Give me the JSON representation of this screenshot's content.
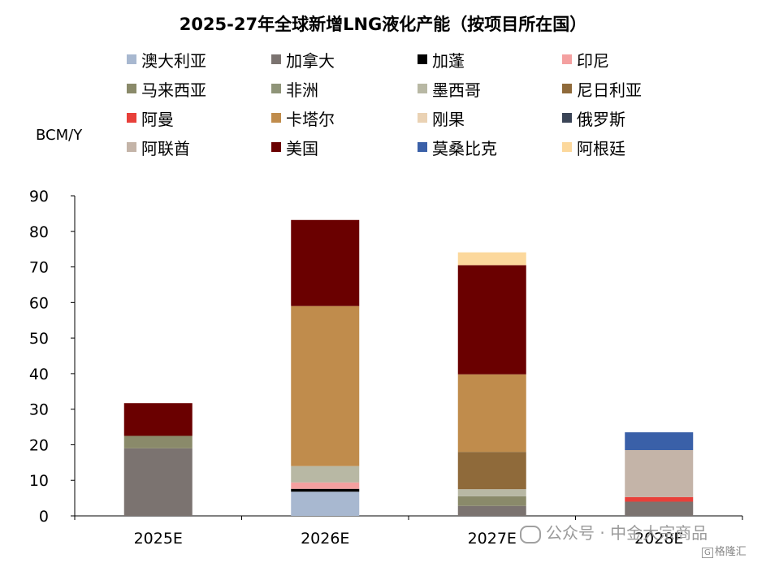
{
  "chart_data": {
    "type": "bar",
    "stacked": true,
    "title": "2025-27年全球新增LNG液化产能（按项目所在国）",
    "ylabel": "BCM/Y",
    "ylim": [
      0,
      90
    ],
    "yticks": [
      0,
      10,
      20,
      30,
      40,
      50,
      60,
      70,
      80,
      90
    ],
    "categories": [
      "2025E",
      "2026E",
      "2027E",
      "2028E"
    ],
    "legend_position": "top",
    "series": [
      {
        "name": "澳大利亚",
        "color": "#a8b8d0",
        "values": [
          0,
          6.8,
          0,
          0
        ]
      },
      {
        "name": "加拿大",
        "color": "#7b7370",
        "values": [
          19.0,
          0,
          2.8,
          4.0
        ]
      },
      {
        "name": "加蓬",
        "color": "#000000",
        "values": [
          0,
          0.8,
          0,
          0
        ]
      },
      {
        "name": "印尼",
        "color": "#f4a0a0",
        "values": [
          0,
          1.8,
          0,
          0
        ]
      },
      {
        "name": "马来西亚",
        "color": "#8a8a6a",
        "values": [
          3.5,
          0,
          2.7,
          0
        ]
      },
      {
        "name": "非洲",
        "color": "#8f9478",
        "values": [
          0,
          0,
          0,
          0
        ]
      },
      {
        "name": "墨西哥",
        "color": "#b8b8a4",
        "values": [
          0,
          4.6,
          2.0,
          0
        ]
      },
      {
        "name": "尼日利亚",
        "color": "#8f6a3a",
        "values": [
          0,
          0,
          10.5,
          0
        ]
      },
      {
        "name": "阿曼",
        "color": "#e8403a",
        "values": [
          0,
          0,
          0,
          1.3
        ]
      },
      {
        "name": "卡塔尔",
        "color": "#c08c4c",
        "values": [
          0,
          45.0,
          21.8,
          0
        ]
      },
      {
        "name": "刚果",
        "color": "#ead2b4",
        "values": [
          0,
          0,
          0,
          0
        ]
      },
      {
        "name": "俄罗斯",
        "color": "#3a4456",
        "values": [
          0,
          0,
          0,
          0
        ]
      },
      {
        "name": "阿联酋",
        "color": "#c4b4a8",
        "values": [
          0,
          0,
          0,
          13.2
        ]
      },
      {
        "name": "美国",
        "color": "#6a0000",
        "values": [
          9.2,
          24.2,
          30.7,
          0
        ]
      },
      {
        "name": "莫桑比克",
        "color": "#3a60a8",
        "values": [
          0,
          0,
          0,
          5.0
        ]
      },
      {
        "name": "阿根廷",
        "color": "#fcd89c",
        "values": [
          0,
          0,
          3.6,
          0
        ]
      }
    ]
  },
  "watermark": {
    "text": "公众号 · 中金大宗商品",
    "brand": "格隆汇",
    "brand_mark": "G"
  }
}
